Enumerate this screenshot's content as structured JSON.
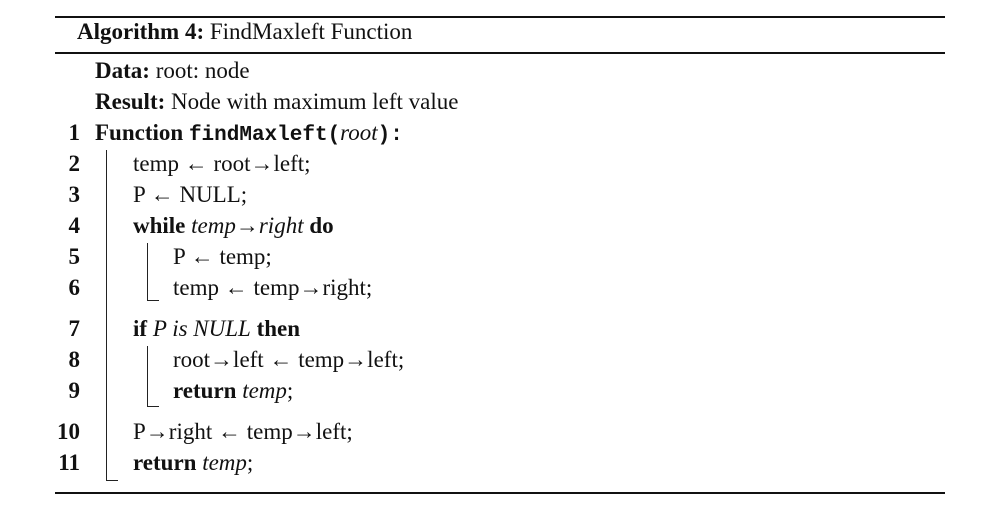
{
  "algorithm": {
    "label": "Algorithm 4:",
    "title": "FindMaxleft Function"
  },
  "header": {
    "data_label": "Data:",
    "data_value": "root: node",
    "result_label": "Result:",
    "result_value": "Node with maximum left value"
  },
  "lines": [
    {
      "num": "1",
      "kw": "Function",
      "func_name": "findMaxleft",
      "open": "(",
      "param": "root",
      "close": "):"
    },
    {
      "num": "2",
      "text": "temp ← root→left;"
    },
    {
      "num": "3",
      "text": "P ← NULL;"
    },
    {
      "num": "4",
      "kw": "while",
      "cond": "temp→right",
      "kw2": "do"
    },
    {
      "num": "5",
      "text": "P ← temp;"
    },
    {
      "num": "6",
      "text": "temp ← temp→right;"
    },
    {
      "num": "7",
      "kw": "if",
      "cond": "P is NULL",
      "kw2": "then"
    },
    {
      "num": "8",
      "text": "root→left ← temp→left;"
    },
    {
      "num": "9",
      "kw": "return",
      "ret": "temp",
      "tail": ";"
    },
    {
      "num": "10",
      "text": "P→right ← temp→left;"
    },
    {
      "num": "11",
      "kw": "return",
      "ret": "temp",
      "tail": ";"
    }
  ]
}
